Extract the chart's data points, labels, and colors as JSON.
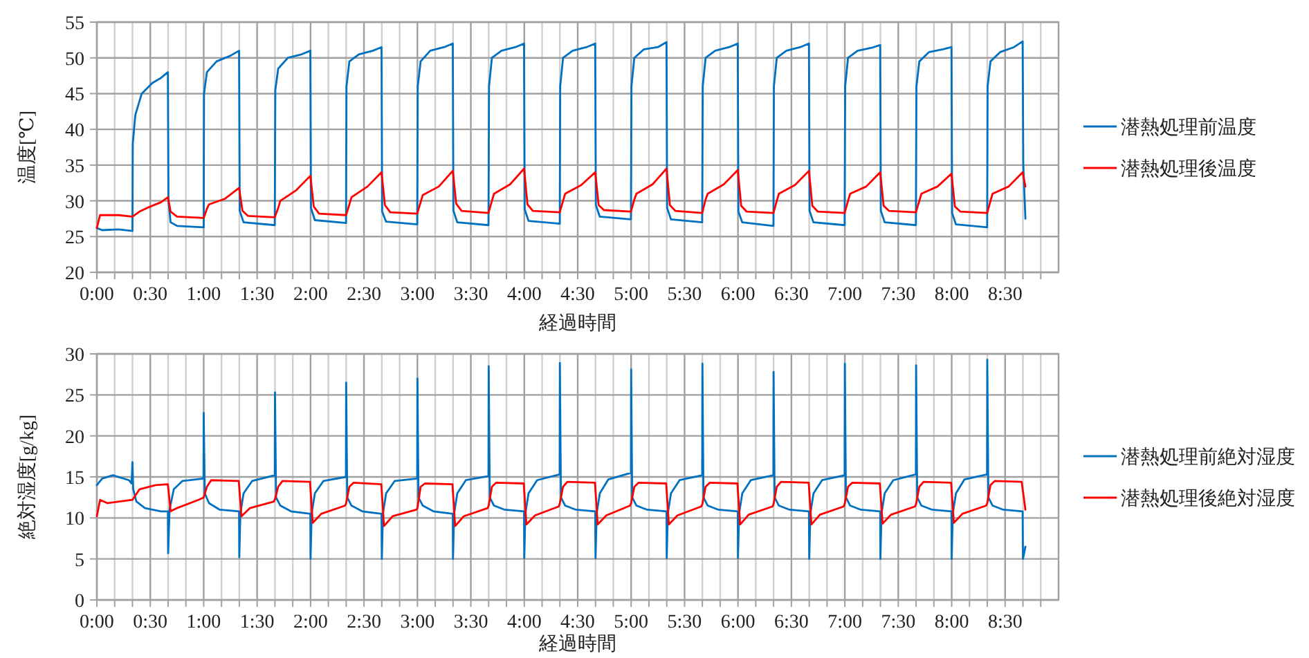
{
  "chart_data": [
    {
      "type": "line",
      "xlabel": "経過時間",
      "ylabel": "温度[℃]",
      "xlim": [
        0,
        9
      ],
      "ylim": [
        20,
        55
      ],
      "yticks": [
        20,
        25,
        30,
        35,
        40,
        45,
        50,
        55
      ],
      "grid": true,
      "legend": "right",
      "xticks": [
        {
          "value": 0,
          "label": "0:00"
        },
        {
          "value": 0.1667,
          "label": null
        },
        {
          "value": 0.3333,
          "label": null
        },
        {
          "value": 0.5,
          "label": "0:30"
        },
        {
          "value": 0.6667,
          "label": null
        },
        {
          "value": 0.8333,
          "label": null
        },
        {
          "value": 1,
          "label": "1:00"
        },
        {
          "value": 1.1667,
          "label": null
        },
        {
          "value": 1.3333,
          "label": null
        },
        {
          "value": 1.5,
          "label": "1:30"
        },
        {
          "value": 1.6667,
          "label": null
        },
        {
          "value": 1.8333,
          "label": null
        },
        {
          "value": 2,
          "label": "2:00"
        },
        {
          "value": 2.1667,
          "label": null
        },
        {
          "value": 2.3333,
          "label": null
        },
        {
          "value": 2.5,
          "label": "2:30"
        },
        {
          "value": 2.6667,
          "label": null
        },
        {
          "value": 2.8333,
          "label": null
        },
        {
          "value": 3,
          "label": "3:00"
        },
        {
          "value": 3.1667,
          "label": null
        },
        {
          "value": 3.3333,
          "label": null
        },
        {
          "value": 3.5,
          "label": "3:30"
        },
        {
          "value": 3.6667,
          "label": null
        },
        {
          "value": 3.8333,
          "label": null
        },
        {
          "value": 4,
          "label": "4:00"
        },
        {
          "value": 4.1667,
          "label": null
        },
        {
          "value": 4.3333,
          "label": null
        },
        {
          "value": 4.5,
          "label": "4:30"
        },
        {
          "value": 4.6667,
          "label": null
        },
        {
          "value": 4.8333,
          "label": null
        },
        {
          "value": 5,
          "label": "5:00"
        },
        {
          "value": 5.1667,
          "label": null
        },
        {
          "value": 5.3333,
          "label": null
        },
        {
          "value": 5.5,
          "label": "5:30"
        },
        {
          "value": 5.6667,
          "label": null
        },
        {
          "value": 5.8333,
          "label": null
        },
        {
          "value": 6,
          "label": "6:00"
        },
        {
          "value": 6.1667,
          "label": null
        },
        {
          "value": 6.3333,
          "label": null
        },
        {
          "value": 6.5,
          "label": "6:30"
        },
        {
          "value": 6.6667,
          "label": null
        },
        {
          "value": 6.8333,
          "label": null
        },
        {
          "value": 7,
          "label": "7:00"
        },
        {
          "value": 7.1667,
          "label": null
        },
        {
          "value": 7.3333,
          "label": null
        },
        {
          "value": 7.5,
          "label": "7:30"
        },
        {
          "value": 7.6667,
          "label": null
        },
        {
          "value": 7.8333,
          "label": null
        },
        {
          "value": 8,
          "label": "8:00"
        },
        {
          "value": 8.1667,
          "label": null
        },
        {
          "value": 8.3333,
          "label": null
        },
        {
          "value": 8.5,
          "label": "8:30"
        },
        {
          "value": 8.6667,
          "label": null
        },
        {
          "value": 8.8333,
          "label": null
        }
      ],
      "series": [
        {
          "name": "潜熱処理前温度",
          "color": "#0070c0",
          "x": [
            0,
            0.05,
            0.2,
            0.333,
            0.336,
            0.36,
            0.42,
            0.52,
            0.6,
            0.665,
            0.67,
            0.69,
            0.75,
            1.0,
            1.003,
            1.03,
            1.12,
            1.25,
            1.331,
            1.337,
            1.373,
            1.665,
            1.67,
            1.697,
            1.787,
            1.917,
            1.998,
            2.004,
            2.04,
            2.332,
            2.336,
            2.363,
            2.453,
            2.583,
            2.664,
            2.67,
            2.706,
            2.998,
            3.003,
            3.03,
            3.12,
            3.25,
            3.331,
            3.337,
            3.373,
            3.665,
            3.67,
            3.697,
            3.787,
            3.917,
            3.998,
            4.004,
            4.04,
            4.332,
            4.336,
            4.363,
            4.453,
            4.583,
            4.664,
            4.67,
            4.706,
            4.998,
            5.003,
            5.03,
            5.12,
            5.25,
            5.331,
            5.337,
            5.373,
            5.665,
            5.67,
            5.697,
            5.787,
            5.917,
            5.998,
            6.004,
            6.04,
            6.332,
            6.336,
            6.363,
            6.453,
            6.583,
            6.664,
            6.67,
            6.706,
            6.998,
            7.003,
            7.03,
            7.12,
            7.25,
            7.331,
            7.337,
            7.373,
            7.665,
            7.67,
            7.697,
            7.787,
            7.917,
            7.998,
            8.004,
            8.04,
            8.332,
            8.336,
            8.363,
            8.453,
            8.583,
            8.664,
            8.67,
            8.69
          ],
          "values": [
            26.2,
            25.9,
            26,
            25.8,
            38,
            42,
            45,
            46.5,
            47.2,
            48,
            30,
            27,
            26.5,
            26.3,
            45,
            48,
            49.5,
            50.3,
            51,
            28.6,
            27,
            26.6,
            45.5,
            48.5,
            50,
            50.5,
            51,
            29,
            27.3,
            26.9,
            46,
            49.5,
            50.5,
            51,
            51.5,
            28.5,
            27.1,
            26.7,
            46,
            49.5,
            51,
            51.5,
            52,
            28.6,
            27,
            26.6,
            46,
            50,
            51,
            51.5,
            52,
            28.8,
            27.2,
            26.8,
            46,
            50,
            51,
            51.5,
            52,
            29.4,
            27.8,
            27.4,
            46,
            50,
            51.2,
            51.5,
            52.2,
            29,
            27.4,
            27,
            46,
            50,
            51,
            51.5,
            52,
            28.5,
            27,
            26.5,
            46,
            50,
            51,
            51.5,
            52,
            28.6,
            27,
            26.6,
            46,
            50,
            51,
            51.4,
            51.8,
            28.6,
            27,
            26.6,
            46,
            49.5,
            50.8,
            51.2,
            51.5,
            28.3,
            26.7,
            26.3,
            46,
            49.5,
            50.8,
            51.5,
            52.3,
            35,
            27.5
          ]
        },
        {
          "name": "潜熱処理後温度",
          "color": "#ff0000",
          "x": [
            0,
            0.03,
            0.2,
            0.333,
            0.4,
            0.5,
            0.6,
            0.665,
            0.69,
            0.75,
            1.0,
            1.03,
            1.05,
            1.2,
            1.331,
            1.363,
            1.413,
            1.665,
            1.697,
            1.717,
            1.867,
            1.998,
            2.03,
            2.08,
            2.332,
            2.363,
            2.383,
            2.533,
            2.664,
            2.696,
            2.746,
            2.998,
            3.03,
            3.05,
            3.2,
            3.331,
            3.363,
            3.413,
            3.665,
            3.697,
            3.717,
            3.867,
            3.998,
            4.03,
            4.08,
            4.332,
            4.363,
            4.383,
            4.533,
            4.664,
            4.696,
            4.746,
            4.998,
            5.03,
            5.05,
            5.2,
            5.331,
            5.363,
            5.413,
            5.665,
            5.697,
            5.717,
            5.867,
            5.998,
            6.03,
            6.08,
            6.332,
            6.363,
            6.383,
            6.533,
            6.664,
            6.696,
            6.746,
            6.998,
            7.03,
            7.05,
            7.2,
            7.331,
            7.363,
            7.413,
            7.665,
            7.697,
            7.717,
            7.867,
            7.998,
            8.03,
            8.08,
            8.332,
            8.363,
            8.383,
            8.533,
            8.664,
            8.69
          ],
          "values": [
            26.2,
            28,
            28,
            27.8,
            28.5,
            29.2,
            29.8,
            30.5,
            28.5,
            27.8,
            27.6,
            28.9,
            29.5,
            30.3,
            31.8,
            28.6,
            27.9,
            27.7,
            29,
            30,
            31.5,
            33.5,
            29.2,
            28.2,
            28,
            29.5,
            30.5,
            32,
            34,
            29.4,
            28.4,
            28.2,
            29.8,
            30.8,
            32,
            34.2,
            29.6,
            28.6,
            28.3,
            30,
            31,
            32.3,
            34.5,
            29.5,
            28.6,
            28.4,
            30,
            31,
            32.2,
            34,
            29.4,
            28.7,
            28.5,
            30.2,
            31,
            32.3,
            34.5,
            29.4,
            28.6,
            28.3,
            30.2,
            31,
            32.3,
            34.3,
            29.3,
            28.5,
            28.3,
            30,
            31,
            32.2,
            34.2,
            29.3,
            28.5,
            28.3,
            30,
            31,
            32,
            34,
            29.3,
            28.6,
            28.4,
            30,
            31,
            32,
            33.8,
            29.2,
            28.5,
            28.3,
            30,
            31,
            32,
            34,
            32
          ]
        }
      ]
    },
    {
      "type": "line",
      "xlabel": "経過時間",
      "ylabel": "絶対湿度[g/kg]",
      "xlim": [
        0,
        9
      ],
      "ylim": [
        0,
        30
      ],
      "yticks": [
        0,
        5,
        10,
        15,
        20,
        25,
        30
      ],
      "grid": true,
      "legend": "right",
      "xticks": [
        {
          "value": 0,
          "label": "0:00"
        },
        {
          "value": 0.1667,
          "label": null
        },
        {
          "value": 0.3333,
          "label": null
        },
        {
          "value": 0.5,
          "label": "0:30"
        },
        {
          "value": 0.6667,
          "label": null
        },
        {
          "value": 0.8333,
          "label": null
        },
        {
          "value": 1,
          "label": "1:00"
        },
        {
          "value": 1.1667,
          "label": null
        },
        {
          "value": 1.3333,
          "label": null
        },
        {
          "value": 1.5,
          "label": "1:30"
        },
        {
          "value": 1.6667,
          "label": null
        },
        {
          "value": 1.8333,
          "label": null
        },
        {
          "value": 2,
          "label": "2:00"
        },
        {
          "value": 2.1667,
          "label": null
        },
        {
          "value": 2.3333,
          "label": null
        },
        {
          "value": 2.5,
          "label": "2:30"
        },
        {
          "value": 2.6667,
          "label": null
        },
        {
          "value": 2.8333,
          "label": null
        },
        {
          "value": 3,
          "label": "3:00"
        },
        {
          "value": 3.1667,
          "label": null
        },
        {
          "value": 3.3333,
          "label": null
        },
        {
          "value": 3.5,
          "label": "3:30"
        },
        {
          "value": 3.6667,
          "label": null
        },
        {
          "value": 3.8333,
          "label": null
        },
        {
          "value": 4,
          "label": "4:00"
        },
        {
          "value": 4.1667,
          "label": null
        },
        {
          "value": 4.3333,
          "label": null
        },
        {
          "value": 4.5,
          "label": "4:30"
        },
        {
          "value": 4.6667,
          "label": null
        },
        {
          "value": 4.8333,
          "label": null
        },
        {
          "value": 5,
          "label": "5:00"
        },
        {
          "value": 5.1667,
          "label": null
        },
        {
          "value": 5.3333,
          "label": null
        },
        {
          "value": 5.5,
          "label": "5:30"
        },
        {
          "value": 5.6667,
          "label": null
        },
        {
          "value": 5.8333,
          "label": null
        },
        {
          "value": 6,
          "label": "6:00"
        },
        {
          "value": 6.1667,
          "label": null
        },
        {
          "value": 6.3333,
          "label": null
        },
        {
          "value": 6.5,
          "label": "6:30"
        },
        {
          "value": 6.6667,
          "label": null
        },
        {
          "value": 6.8333,
          "label": null
        },
        {
          "value": 7,
          "label": "7:00"
        },
        {
          "value": 7.1667,
          "label": null
        },
        {
          "value": 7.3333,
          "label": null
        },
        {
          "value": 7.5,
          "label": "7:30"
        },
        {
          "value": 7.6667,
          "label": null
        },
        {
          "value": 7.8333,
          "label": null
        },
        {
          "value": 8,
          "label": "8:00"
        },
        {
          "value": 8.1667,
          "label": null
        },
        {
          "value": 8.3333,
          "label": null
        },
        {
          "value": 8.5,
          "label": "8:30"
        },
        {
          "value": 8.6667,
          "label": null
        },
        {
          "value": 8.8333,
          "label": null
        }
      ],
      "series": [
        {
          "name": "潜熱処理前絶対湿度",
          "color": "#0070c0",
          "x": [
            0,
            0.05,
            0.15,
            0.3,
            0.325,
            0.333,
            0.34,
            0.37,
            0.45,
            0.6,
            0.665,
            0.667,
            0.68,
            0.72,
            0.8,
            0.998,
            1.0,
            1.01,
            1.05,
            1.15,
            1.331,
            1.333,
            1.343,
            1.373,
            1.453,
            1.665,
            1.667,
            1.677,
            1.717,
            1.817,
            1.998,
            2.0,
            2.01,
            2.04,
            2.12,
            2.331,
            2.333,
            2.343,
            2.383,
            2.483,
            2.664,
            2.667,
            2.677,
            2.707,
            2.787,
            2.998,
            3.0,
            3.01,
            3.05,
            3.15,
            3.331,
            3.333,
            3.343,
            3.373,
            3.453,
            3.665,
            3.667,
            3.677,
            3.717,
            3.817,
            3.998,
            4.0,
            4.01,
            4.04,
            4.12,
            4.331,
            4.333,
            4.343,
            4.383,
            4.483,
            4.664,
            4.667,
            4.677,
            4.707,
            4.787,
            4.998,
            5.0,
            5.01,
            5.05,
            5.15,
            5.331,
            5.333,
            5.343,
            5.373,
            5.453,
            5.665,
            5.667,
            5.677,
            5.717,
            5.817,
            5.998,
            6.0,
            6.01,
            6.04,
            6.12,
            6.331,
            6.333,
            6.343,
            6.383,
            6.483,
            6.664,
            6.667,
            6.677,
            6.707,
            6.787,
            6.998,
            7.0,
            7.01,
            7.05,
            7.15,
            7.331,
            7.333,
            7.343,
            7.373,
            7.453,
            7.665,
            7.667,
            7.677,
            7.717,
            7.817,
            7.998,
            8.0,
            8.01,
            8.04,
            8.12,
            8.331,
            8.333,
            8.343,
            8.383,
            8.483,
            8.664,
            8.667,
            8.69
          ],
          "values": [
            14,
            14.8,
            15.2,
            14.6,
            14.2,
            16.8,
            13.5,
            12,
            11.2,
            10.8,
            10.8,
            5.7,
            11,
            13.5,
            14.5,
            14.8,
            22.8,
            13,
            11.8,
            11,
            10.8,
            5.2,
            10.5,
            13,
            14.5,
            15.2,
            25.3,
            12.5,
            11.5,
            10.8,
            10.5,
            5,
            10.5,
            13,
            14.5,
            15,
            26.5,
            12.5,
            11.5,
            10.8,
            10.5,
            5,
            10.5,
            13,
            14.5,
            14.8,
            27,
            12.5,
            11.5,
            10.8,
            10.5,
            5,
            10.5,
            13,
            14.6,
            15.1,
            28.5,
            12.5,
            11.5,
            11,
            10.8,
            5.1,
            10.5,
            13,
            14.6,
            15.3,
            28.9,
            12.5,
            11.5,
            11,
            10.8,
            5.1,
            10.5,
            13,
            14.7,
            15.5,
            28.1,
            12.5,
            11.5,
            11,
            10.8,
            5.1,
            10.5,
            13,
            14.6,
            15.2,
            28.8,
            12.5,
            11.5,
            11,
            10.8,
            5.1,
            10.5,
            13,
            14.6,
            15.2,
            27.8,
            12.5,
            11.5,
            11,
            10.8,
            5,
            10.5,
            13,
            14.6,
            15.2,
            28.8,
            12.5,
            11.5,
            11,
            10.8,
            5,
            10.5,
            13,
            14.6,
            15.3,
            28.6,
            12.5,
            11.5,
            11,
            10.8,
            5,
            10.5,
            13,
            14.7,
            15.3,
            29.3,
            12.5,
            11.5,
            11,
            10.8,
            5,
            6.5
          ]
        },
        {
          "name": "潜熱処理後絶対湿度",
          "color": "#ff0000",
          "x": [
            0,
            0.03,
            0.1,
            0.333,
            0.4,
            0.55,
            0.665,
            0.69,
            0.75,
            0.95,
            1.0,
            1.03,
            1.07,
            1.328,
            1.353,
            1.433,
            1.657,
            1.667,
            1.697,
            1.737,
            1.995,
            2.02,
            2.1,
            2.323,
            2.333,
            2.363,
            2.403,
            2.662,
            2.687,
            2.767,
            2.99,
            3.0,
            3.03,
            3.07,
            3.328,
            3.353,
            3.433,
            3.657,
            3.667,
            3.697,
            3.737,
            3.995,
            4.02,
            4.1,
            4.323,
            4.333,
            4.363,
            4.403,
            4.662,
            4.687,
            4.767,
            4.99,
            5.0,
            5.03,
            5.07,
            5.328,
            5.353,
            5.433,
            5.657,
            5.667,
            5.697,
            5.737,
            5.995,
            6.02,
            6.1,
            6.323,
            6.333,
            6.363,
            6.403,
            6.662,
            6.687,
            6.767,
            6.99,
            7.0,
            7.03,
            7.07,
            7.328,
            7.353,
            7.433,
            7.657,
            7.667,
            7.697,
            7.737,
            7.995,
            8.02,
            8.1,
            8.323,
            8.333,
            8.363,
            8.403,
            8.655,
            8.69
          ],
          "values": [
            10.2,
            12.2,
            11.8,
            12.2,
            13.5,
            14,
            14.1,
            10.8,
            11.2,
            12.2,
            12.5,
            13.8,
            14.6,
            14.5,
            10.2,
            11.2,
            12,
            12.3,
            13.8,
            14.5,
            14.4,
            9.4,
            10.5,
            11.5,
            11.8,
            13.8,
            14.3,
            14.1,
            9,
            10.2,
            11,
            11.2,
            13.8,
            14.2,
            14.1,
            9,
            10.2,
            11.2,
            11.5,
            13.8,
            14.3,
            14.2,
            9.2,
            10.3,
            11.4,
            11.8,
            13.8,
            14.4,
            14.3,
            9.2,
            10.3,
            11.5,
            11.8,
            13.8,
            14.3,
            14.2,
            9.2,
            10.3,
            11.4,
            11.7,
            13.8,
            14.3,
            14.2,
            9.2,
            10.4,
            11.4,
            11.7,
            13.8,
            14.4,
            14.3,
            9.2,
            10.4,
            11.4,
            11.8,
            13.8,
            14.3,
            14.2,
            9.3,
            10.4,
            11.4,
            11.7,
            13.8,
            14.4,
            14.3,
            9.4,
            10.5,
            11.5,
            11.8,
            14,
            14.5,
            14.4,
            11
          ]
        }
      ]
    }
  ]
}
